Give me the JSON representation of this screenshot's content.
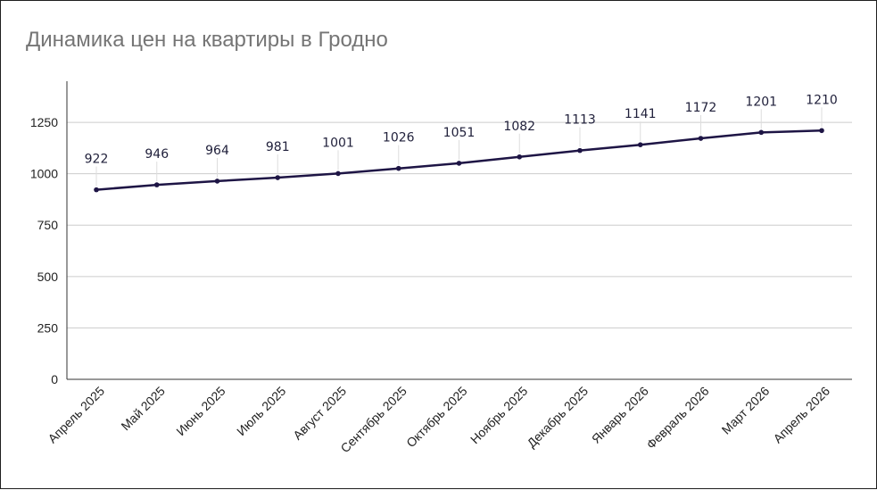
{
  "chart_data": {
    "type": "line",
    "title": "Динамика цен на квартиры в Гродно",
    "xlabel": "",
    "ylabel": "",
    "categories": [
      "Апрель 2025",
      "Май 2025",
      "Июнь 2025",
      "Июль 2025",
      "Август 2025",
      "Сентябрь 2025",
      "Октябрь 2025",
      "Ноябрь 2025",
      "Декабрь 2025",
      "Январь 2026",
      "Февраль 2026",
      "Март 2026",
      "Апрель 2026"
    ],
    "series": [
      {
        "values": [
          922,
          946,
          964,
          981,
          1001,
          1026,
          1051,
          1082,
          1113,
          1141,
          1172,
          1201,
          1210
        ],
        "color": "#1e1545"
      }
    ],
    "ylim": [
      0,
      1450
    ],
    "yticks": [
      0,
      250,
      500,
      750,
      1000,
      1250
    ],
    "grid": true,
    "legend": "none",
    "data_labels": true
  }
}
